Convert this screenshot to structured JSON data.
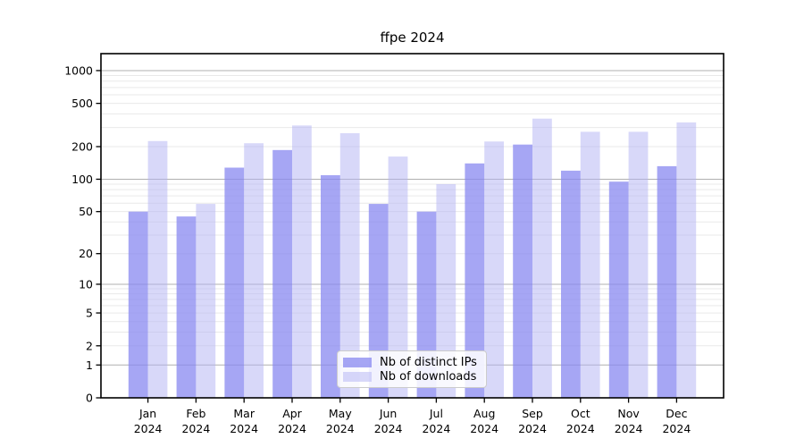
{
  "chart": {
    "title": "ffpe 2024"
  },
  "chart_data": {
    "type": "bar",
    "title": "ffpe 2024",
    "categories": [
      "Jan 2024",
      "Feb 2024",
      "Mar 2024",
      "Apr 2024",
      "May 2024",
      "Jun 2024",
      "Jul 2024",
      "Aug 2024",
      "Sep 2024",
      "Oct 2024",
      "Nov 2024",
      "Dec 2024"
    ],
    "x_tick_top_lines": [
      "Jan",
      "Feb",
      "Mar",
      "Apr",
      "May",
      "Jun",
      "Jul",
      "Aug",
      "Sep",
      "Oct",
      "Nov",
      "Dec"
    ],
    "x_tick_bottom_line": "2024",
    "series": [
      {
        "name": "Nb of distinct IPs",
        "color": "rgba(136,136,240,0.75)",
        "color_flat": "#a6a6ef",
        "values": [
          50,
          45,
          128,
          186,
          109,
          59,
          50,
          140,
          209,
          120,
          95,
          132
        ]
      },
      {
        "name": "Nb of downloads",
        "color": "rgba(177,177,244,0.5)",
        "color_flat": "#d8d8f9",
        "values": [
          225,
          59,
          215,
          313,
          266,
          162,
          90,
          223,
          362,
          274,
          274,
          334
        ]
      }
    ],
    "y_ticks": [
      0,
      1,
      2,
      5,
      10,
      20,
      50,
      100,
      200,
      500,
      1000
    ],
    "y_scale": "log10(value+1)",
    "ylim": [
      0,
      1430
    ],
    "grid": true,
    "major_grid_values": [
      1,
      10,
      100,
      1000
    ],
    "legend_position": "lower center",
    "colors": {
      "major_grid": "#b0b0b0",
      "minor_grid": "#e9e9e9",
      "spine": "#000000",
      "background": "#ffffff"
    }
  }
}
